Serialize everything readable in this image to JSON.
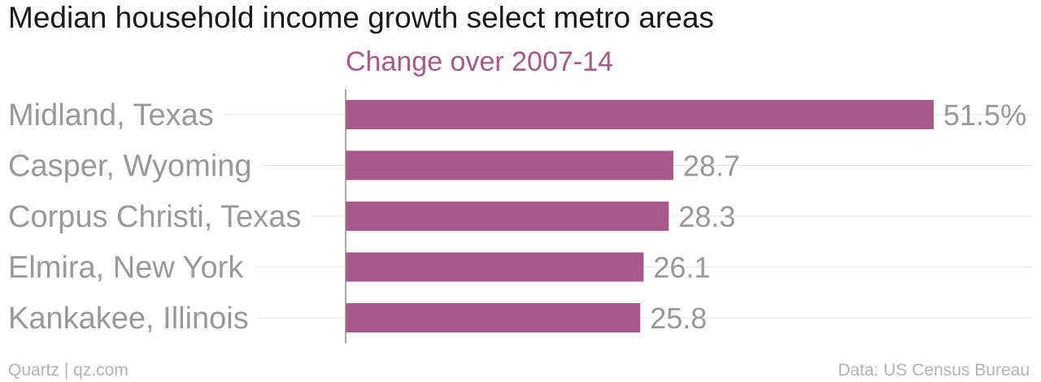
{
  "header": {
    "title": "Median household income growth select metro areas",
    "subtitle": "Change over 2007-14"
  },
  "footer": {
    "source_left": "Quartz | qz.com",
    "source_right": "Data: US Census Bureau"
  },
  "colors": {
    "bar": "#a8588a",
    "subtitle": "#a8588a",
    "gridline": "#e6e6e6",
    "axis": "#888888"
  },
  "chart_data": {
    "type": "bar",
    "orientation": "horizontal",
    "title": "Median household income growth select metro areas",
    "subtitle": "Change over 2007-14",
    "categories": [
      "Midland, Texas",
      "Casper, Wyoming",
      "Corpus Christi, Texas",
      "Elmira, New York",
      "Kankakee, Illinois"
    ],
    "values": [
      51.5,
      28.7,
      28.3,
      26.1,
      25.8
    ],
    "value_labels": [
      "51.5%",
      "28.7",
      "28.3",
      "26.1",
      "25.8"
    ],
    "xlim": [
      0,
      53
    ],
    "grid": true,
    "legend": "none"
  }
}
